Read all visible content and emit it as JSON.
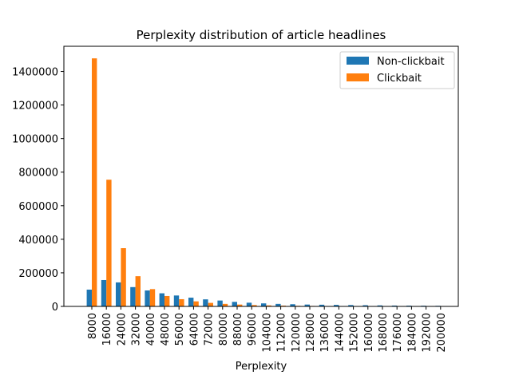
{
  "chart_data": {
    "type": "bar",
    "title": "Perplexity distribution of article headlines",
    "xlabel": "Perplexity",
    "ylabel": "",
    "ylim": [
      0,
      1550000
    ],
    "yticks": [
      0,
      200000,
      400000,
      600000,
      800000,
      1000000,
      1200000,
      1400000
    ],
    "categories": [
      "8000",
      "16000",
      "24000",
      "32000",
      "40000",
      "48000",
      "56000",
      "64000",
      "72000",
      "80000",
      "88000",
      "96000",
      "104000",
      "112000",
      "120000",
      "128000",
      "136000",
      "144000",
      "152000",
      "160000",
      "168000",
      "176000",
      "184000",
      "192000",
      "200000"
    ],
    "series": [
      {
        "name": "Non-clickbait",
        "color": "#1f77b4",
        "values": [
          100000,
          157000,
          143000,
          115000,
          95000,
          78000,
          65000,
          52000,
          42000,
          35000,
          27000,
          22000,
          18000,
          15000,
          13000,
          11000,
          10000,
          9000,
          8000,
          7000,
          6000,
          5000,
          4500,
          4000,
          3500
        ]
      },
      {
        "name": "Clickbait",
        "color": "#ff7f0e",
        "values": [
          1478000,
          755000,
          347000,
          180000,
          103000,
          62000,
          43000,
          30000,
          21000,
          15000,
          11000,
          8000,
          6000,
          4500,
          3500,
          2800,
          2200,
          1800,
          1500,
          1200,
          1000,
          800,
          700,
          600,
          500
        ]
      }
    ],
    "legend_position": "top-right",
    "grid": false
  }
}
